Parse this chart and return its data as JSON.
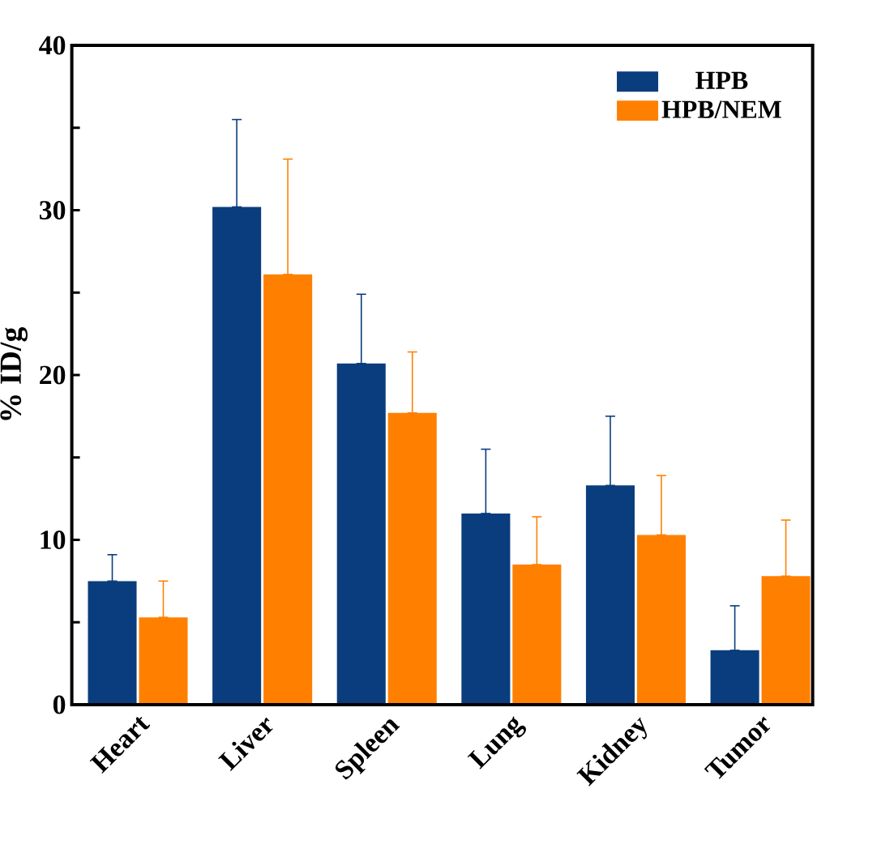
{
  "chart_data": {
    "type": "bar",
    "ylabel": "% ID/g",
    "categories": [
      "Heart",
      "Liver",
      "Spleen",
      "Lung",
      "Kidney",
      "Tumor"
    ],
    "series": [
      {
        "name": "HPB",
        "color": "#0a3d7d",
        "values": [
          7.5,
          30.2,
          20.7,
          11.6,
          13.3,
          3.3
        ],
        "errors": [
          [
            7.5,
            9.1
          ],
          [
            30.2,
            35.5
          ],
          [
            20.7,
            24.9
          ],
          [
            11.6,
            15.5
          ],
          [
            13.3,
            17.5
          ],
          [
            3.3,
            6.0
          ]
        ]
      },
      {
        "name": "HPB/NEM",
        "color": "#ff8000",
        "values": [
          5.3,
          26.1,
          17.7,
          8.5,
          10.3,
          7.8
        ],
        "errors": [
          [
            5.3,
            7.5
          ],
          [
            26.1,
            33.1
          ],
          [
            17.7,
            21.4
          ],
          [
            8.5,
            11.4
          ],
          [
            10.3,
            13.9
          ],
          [
            7.8,
            11.2
          ]
        ]
      }
    ],
    "ylim": [
      0,
      40
    ],
    "yticks": [
      0,
      {
        "value": 5,
        "label": null
      },
      10,
      {
        "value": 15,
        "label": null
      },
      20,
      {
        "value": 25,
        "label": null
      },
      30,
      {
        "value": 35,
        "label": null
      },
      40
    ],
    "legend": "top right",
    "grid": false
  }
}
